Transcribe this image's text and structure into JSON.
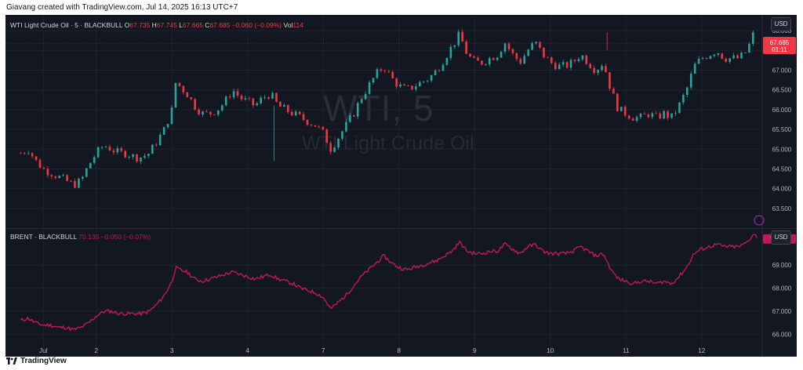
{
  "header": {
    "text": "Giavang created with TradingView.com, Jul 14, 2025 16:13 UTC+7"
  },
  "footer": {
    "logo": "TradingView",
    "logo_icon": "tradingview-logo-icon"
  },
  "colors": {
    "background": "#131722",
    "up": "#26a69a",
    "down": "#f23645",
    "brent": "#c2185b"
  },
  "chart_data": [
    {
      "type": "candlestick",
      "legend": {
        "symbol": "WTI Light Crude Oil · 5 · BLACKBULL",
        "o_label": "O",
        "o": "67.735",
        "h_label": "H",
        "h": "67.745",
        "l_label": "L",
        "l": "67.665",
        "c_label": "C",
        "c": "67.685",
        "change": "−0.060 (−0.09%)",
        "vol_label": "Vol",
        "vol": "114"
      },
      "watermark": {
        "ticker": "WTI, 5",
        "name": "WTI Light Crude Oil"
      },
      "currency": "USD",
      "last_price": "67.685",
      "countdown": "01:11",
      "ylim": [
        63.2,
        68.4
      ],
      "yticks": [
        "68.000",
        "67.500",
        "67.000",
        "66.500",
        "66.000",
        "65.500",
        "65.000",
        "64.500",
        "64.000",
        "63.500"
      ],
      "day_markers": [
        "Jul",
        "2",
        "3",
        "4",
        "7",
        "8",
        "9",
        "10",
        "11",
        "12"
      ],
      "day_positions": [
        0.3,
        1.0,
        2.0,
        3.0,
        4.0,
        5.0,
        6.0,
        7.0,
        8.0,
        9.0
      ],
      "x_range": [
        -0.2,
        9.8
      ],
      "close_path": [
        [
          0,
          64.9
        ],
        [
          0.1,
          65.0
        ],
        [
          0.2,
          64.7
        ],
        [
          0.3,
          64.5
        ],
        [
          0.4,
          64.4
        ],
        [
          0.5,
          64.3
        ],
        [
          0.6,
          64.2
        ],
        [
          0.7,
          64.1
        ],
        [
          0.8,
          64.2
        ],
        [
          0.9,
          64.6
        ],
        [
          1.0,
          64.9
        ],
        [
          1.1,
          65.1
        ],
        [
          1.2,
          65.0
        ],
        [
          1.3,
          64.9
        ],
        [
          1.4,
          64.9
        ],
        [
          1.5,
          64.8
        ],
        [
          1.6,
          64.8
        ],
        [
          1.7,
          64.9
        ],
        [
          1.8,
          65.2
        ],
        [
          1.9,
          65.5
        ],
        [
          2.0,
          66.0
        ],
        [
          2.05,
          66.7
        ],
        [
          2.1,
          66.6
        ],
        [
          2.2,
          66.4
        ],
        [
          2.3,
          66.1
        ],
        [
          2.4,
          65.9
        ],
        [
          2.5,
          65.9
        ],
        [
          2.6,
          66.0
        ],
        [
          2.7,
          66.2
        ],
        [
          2.8,
          66.5
        ],
        [
          2.9,
          66.3
        ],
        [
          3.0,
          66.2
        ],
        [
          3.1,
          66.1
        ],
        [
          3.2,
          66.3
        ],
        [
          3.3,
          66.4
        ],
        [
          3.4,
          66.1
        ],
        [
          3.5,
          66.0
        ],
        [
          3.6,
          65.9
        ],
        [
          3.7,
          65.8
        ],
        [
          3.8,
          65.7
        ],
        [
          3.9,
          65.6
        ],
        [
          4.0,
          65.4
        ],
        [
          4.1,
          65.0
        ],
        [
          4.2,
          65.3
        ],
        [
          4.3,
          65.6
        ],
        [
          4.4,
          65.9
        ],
        [
          4.5,
          66.3
        ],
        [
          4.6,
          66.6
        ],
        [
          4.7,
          66.9
        ],
        [
          4.8,
          67.1
        ],
        [
          4.9,
          66.8
        ],
        [
          5.0,
          66.6
        ],
        [
          5.1,
          66.5
        ],
        [
          5.2,
          66.6
        ],
        [
          5.3,
          66.7
        ],
        [
          5.4,
          66.8
        ],
        [
          5.5,
          67.0
        ],
        [
          5.6,
          67.3
        ],
        [
          5.7,
          67.6
        ],
        [
          5.8,
          67.9
        ],
        [
          5.9,
          67.4
        ],
        [
          6.0,
          67.2
        ],
        [
          6.1,
          67.2
        ],
        [
          6.2,
          67.3
        ],
        [
          6.3,
          67.4
        ],
        [
          6.4,
          67.7
        ],
        [
          6.5,
          67.4
        ],
        [
          6.6,
          67.2
        ],
        [
          6.7,
          67.5
        ],
        [
          6.8,
          67.7
        ],
        [
          6.9,
          67.4
        ],
        [
          7.0,
          67.2
        ],
        [
          7.1,
          67.1
        ],
        [
          7.2,
          67.1
        ],
        [
          7.3,
          67.2
        ],
        [
          7.4,
          67.4
        ],
        [
          7.5,
          67.2
        ],
        [
          7.6,
          67.0
        ],
        [
          7.7,
          67.2
        ],
        [
          7.8,
          66.5
        ],
        [
          7.9,
          66.0
        ],
        [
          8.0,
          65.9
        ],
        [
          8.1,
          65.8
        ],
        [
          8.2,
          65.8
        ],
        [
          8.3,
          65.9
        ],
        [
          8.4,
          65.8
        ],
        [
          8.5,
          65.9
        ],
        [
          8.6,
          65.8
        ],
        [
          8.7,
          66.1
        ],
        [
          8.8,
          66.5
        ],
        [
          8.9,
          67.1
        ],
        [
          9.0,
          67.3
        ],
        [
          9.1,
          67.4
        ],
        [
          9.2,
          67.5
        ],
        [
          9.3,
          67.3
        ],
        [
          9.4,
          67.3
        ],
        [
          9.5,
          67.3
        ],
        [
          9.6,
          67.5
        ],
        [
          9.7,
          68.0
        ],
        [
          9.73,
          67.685
        ]
      ]
    },
    {
      "type": "line",
      "legend": {
        "symbol": "BRENT · BLACKBULL",
        "value": "70.135",
        "change": "−0.050 (−0.07%)"
      },
      "currency": "USD",
      "ylim": [
        65.85,
        70.4
      ],
      "yticks": [
        "69.000",
        "68.000",
        "67.000",
        "66.000"
      ],
      "series": [
        {
          "values_path": [
            [
              0,
              66.6
            ],
            [
              0.1,
              66.7
            ],
            [
              0.2,
              66.5
            ],
            [
              0.3,
              66.4
            ],
            [
              0.4,
              66.4
            ],
            [
              0.5,
              66.3
            ],
            [
              0.6,
              66.3
            ],
            [
              0.7,
              66.2
            ],
            [
              0.8,
              66.3
            ],
            [
              0.9,
              66.5
            ],
            [
              1.0,
              66.8
            ],
            [
              1.1,
              67.0
            ],
            [
              1.2,
              67.0
            ],
            [
              1.3,
              66.9
            ],
            [
              1.4,
              66.9
            ],
            [
              1.5,
              66.9
            ],
            [
              1.6,
              66.9
            ],
            [
              1.7,
              67.0
            ],
            [
              1.8,
              67.3
            ],
            [
              1.9,
              67.7
            ],
            [
              2.0,
              68.3
            ],
            [
              2.05,
              68.9
            ],
            [
              2.1,
              68.8
            ],
            [
              2.2,
              68.7
            ],
            [
              2.3,
              68.4
            ],
            [
              2.4,
              68.3
            ],
            [
              2.5,
              68.4
            ],
            [
              2.6,
              68.5
            ],
            [
              2.7,
              68.6
            ],
            [
              2.8,
              68.7
            ],
            [
              2.9,
              68.6
            ],
            [
              3.0,
              68.5
            ],
            [
              3.1,
              68.4
            ],
            [
              3.2,
              68.5
            ],
            [
              3.3,
              68.6
            ],
            [
              3.4,
              68.4
            ],
            [
              3.5,
              68.3
            ],
            [
              3.6,
              68.2
            ],
            [
              3.7,
              68.0
            ],
            [
              3.8,
              67.9
            ],
            [
              3.9,
              67.8
            ],
            [
              4.0,
              67.6
            ],
            [
              4.1,
              67.1
            ],
            [
              4.2,
              67.4
            ],
            [
              4.3,
              67.7
            ],
            [
              4.4,
              68.1
            ],
            [
              4.5,
              68.5
            ],
            [
              4.6,
              68.8
            ],
            [
              4.7,
              69.1
            ],
            [
              4.8,
              69.4
            ],
            [
              4.9,
              69.1
            ],
            [
              5.0,
              68.9
            ],
            [
              5.1,
              68.8
            ],
            [
              5.2,
              68.9
            ],
            [
              5.3,
              69.0
            ],
            [
              5.4,
              69.1
            ],
            [
              5.5,
              69.2
            ],
            [
              5.6,
              69.4
            ],
            [
              5.7,
              69.6
            ],
            [
              5.8,
              70.0
            ],
            [
              5.9,
              69.6
            ],
            [
              6.0,
              69.5
            ],
            [
              6.1,
              69.5
            ],
            [
              6.2,
              69.6
            ],
            [
              6.3,
              69.6
            ],
            [
              6.4,
              69.9
            ],
            [
              6.5,
              69.7
            ],
            [
              6.6,
              69.5
            ],
            [
              6.7,
              69.8
            ],
            [
              6.8,
              69.9
            ],
            [
              6.9,
              69.6
            ],
            [
              7.0,
              69.5
            ],
            [
              7.1,
              69.5
            ],
            [
              7.2,
              69.5
            ],
            [
              7.3,
              69.6
            ],
            [
              7.4,
              69.8
            ],
            [
              7.5,
              69.6
            ],
            [
              7.6,
              69.4
            ],
            [
              7.7,
              69.5
            ],
            [
              7.8,
              68.8
            ],
            [
              7.9,
              68.4
            ],
            [
              8.0,
              68.3
            ],
            [
              8.1,
              68.2
            ],
            [
              8.2,
              68.3
            ],
            [
              8.3,
              68.3
            ],
            [
              8.4,
              68.2
            ],
            [
              8.5,
              68.3
            ],
            [
              8.6,
              68.2
            ],
            [
              8.7,
              68.5
            ],
            [
              8.8,
              68.9
            ],
            [
              8.9,
              69.5
            ],
            [
              9.0,
              69.7
            ],
            [
              9.1,
              69.8
            ],
            [
              9.2,
              69.9
            ],
            [
              9.3,
              69.8
            ],
            [
              9.4,
              69.8
            ],
            [
              9.5,
              69.8
            ],
            [
              9.6,
              70.0
            ],
            [
              9.7,
              70.4
            ],
            [
              9.73,
              70.135
            ]
          ]
        }
      ]
    }
  ]
}
